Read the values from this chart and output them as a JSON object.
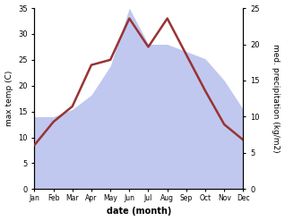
{
  "months": [
    "Jan",
    "Feb",
    "Mar",
    "Apr",
    "May",
    "Jun",
    "Jul",
    "Aug",
    "Sep",
    "Oct",
    "Nov",
    "Dec"
  ],
  "temperature": [
    8.5,
    13.0,
    16.0,
    24.0,
    25.0,
    33.0,
    27.5,
    33.0,
    26.0,
    19.0,
    12.5,
    9.5
  ],
  "precipitation": [
    10.0,
    10.0,
    11.0,
    13.0,
    17.0,
    25.0,
    20.0,
    20.0,
    19.0,
    18.0,
    15.0,
    11.0
  ],
  "temp_color": "#993333",
  "precip_fill_color": "#c0c8f0",
  "precip_edge_color": "#a8b0e0",
  "temp_ylim": [
    0,
    35
  ],
  "precip_ylim": [
    0,
    25
  ],
  "xlabel": "date (month)",
  "ylabel_left": "max temp (C)",
  "ylabel_right": "med. precipitation (kg/m2)",
  "temp_yticks": [
    0,
    5,
    10,
    15,
    20,
    25,
    30,
    35
  ],
  "precip_yticks": [
    0,
    5,
    10,
    15,
    20,
    25
  ],
  "background_color": "#ffffff"
}
